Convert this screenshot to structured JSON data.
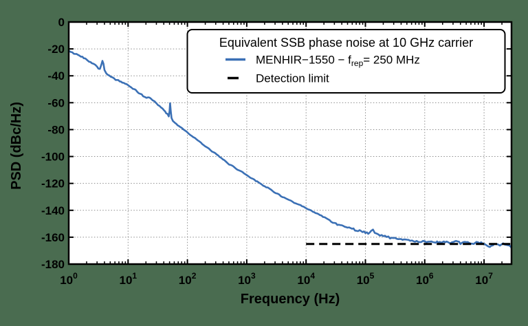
{
  "figure": {
    "background_color": "#4A6C50",
    "plot_background": "#FFFFFF",
    "grid_color": "#8C8C8C",
    "axis_color": "#000000"
  },
  "axes": {
    "x_label": "Frequency (Hz)",
    "y_label": "PSD (dBc/Hz)",
    "x_tick_base": "10",
    "x_tick_exponents": [
      0,
      1,
      2,
      3,
      4,
      5,
      6,
      7
    ],
    "y_tick_labels": [
      "0",
      "-20",
      "-40",
      "-60",
      "-80",
      "-100",
      "-120",
      "-140",
      "-160",
      "-180"
    ]
  },
  "legend": {
    "title": "Equivalent SSB phase noise at 10 GHz carrier",
    "entries": [
      {
        "label_prefix": "MENHIR−1550 − f",
        "label_sub": "rep",
        "label_suffix": "= 250 MHz",
        "color": "#3B70B5",
        "style": "solid"
      },
      {
        "label_prefix": "Detection limit",
        "label_sub": "",
        "label_suffix": "",
        "color": "#000000",
        "style": "dashed"
      }
    ]
  },
  "chart_data": {
    "type": "line",
    "title": "Equivalent SSB phase noise at 10 GHz carrier",
    "xlabel": "Frequency (Hz)",
    "ylabel": "PSD (dBc/Hz)",
    "xscale": "log",
    "xlim": [
      1,
      29000000
    ],
    "ylim": [
      -180,
      0
    ],
    "grid": true,
    "legend_position": "upper right",
    "series": [
      {
        "name": "MENHIR−1550 − f_rep = 250 MHz",
        "color": "#3B70B5",
        "style": "solid",
        "points": [
          [
            1,
            -21.5
          ],
          [
            1.15,
            -23
          ],
          [
            1.35,
            -24
          ],
          [
            1.6,
            -25.5
          ],
          [
            1.9,
            -27
          ],
          [
            2.2,
            -29
          ],
          [
            2.6,
            -31
          ],
          [
            3.0,
            -33
          ],
          [
            3.35,
            -35
          ],
          [
            3.55,
            -31.5
          ],
          [
            3.7,
            -28.5
          ],
          [
            3.85,
            -31.5
          ],
          [
            4.0,
            -35.5
          ],
          [
            4.3,
            -38
          ],
          [
            4.8,
            -40
          ],
          [
            5.5,
            -41.5
          ],
          [
            6.5,
            -43
          ],
          [
            8,
            -45
          ],
          [
            10,
            -47
          ],
          [
            12,
            -49.5
          ],
          [
            15,
            -52.5
          ],
          [
            18,
            -55
          ],
          [
            20.5,
            -56.5
          ],
          [
            23,
            -56
          ],
          [
            26,
            -58
          ],
          [
            30,
            -60.5
          ],
          [
            36,
            -63.5
          ],
          [
            42,
            -66.5
          ],
          [
            46,
            -68.5
          ],
          [
            48.5,
            -70
          ],
          [
            50,
            -66
          ],
          [
            51,
            -60.5
          ],
          [
            52.5,
            -66.5
          ],
          [
            54,
            -71
          ],
          [
            57,
            -73.5
          ],
          [
            62,
            -75
          ],
          [
            72,
            -77.5
          ],
          [
            85,
            -79.5
          ],
          [
            100,
            -82
          ],
          [
            125,
            -85.5
          ],
          [
            160,
            -89
          ],
          [
            200,
            -92.5
          ],
          [
            260,
            -96
          ],
          [
            330,
            -99.5
          ],
          [
            420,
            -103
          ],
          [
            540,
            -106.5
          ],
          [
            700,
            -109.5
          ],
          [
            900,
            -112.5
          ],
          [
            1150,
            -115.5
          ],
          [
            1500,
            -118.5
          ],
          [
            1900,
            -121.5
          ],
          [
            2400,
            -124
          ],
          [
            3100,
            -127
          ],
          [
            4000,
            -130
          ],
          [
            5200,
            -132.5
          ],
          [
            6700,
            -135
          ],
          [
            8600,
            -137
          ],
          [
            10000,
            -138.5
          ],
          [
            13000,
            -141
          ],
          [
            17000,
            -143.5
          ],
          [
            22000,
            -146
          ],
          [
            30000,
            -149.5
          ],
          [
            40000,
            -151.5
          ],
          [
            50000,
            -152.5
          ],
          [
            63000,
            -154
          ],
          [
            80000,
            -155.3
          ],
          [
            100000,
            -156.5
          ],
          [
            118000,
            -156.8
          ],
          [
            134000,
            -154.8
          ],
          [
            155000,
            -157.5
          ],
          [
            200000,
            -159
          ],
          [
            260000,
            -160.3
          ],
          [
            316000,
            -160.8
          ],
          [
            400000,
            -161.5
          ],
          [
            500000,
            -162
          ],
          [
            650000,
            -162.8
          ],
          [
            820000,
            -163.2
          ],
          [
            1000000,
            -163.5
          ],
          [
            1300000,
            -163.2
          ],
          [
            1700000,
            -164
          ],
          [
            2100000,
            -163.4
          ],
          [
            2600000,
            -164.2
          ],
          [
            3200000,
            -163.6
          ],
          [
            4000000,
            -164.3
          ],
          [
            5000000,
            -163.8
          ],
          [
            6300000,
            -164.5
          ],
          [
            7900000,
            -164
          ],
          [
            9500000,
            -164.6
          ],
          [
            11000000,
            -166.3
          ],
          [
            12500000,
            -167.3
          ],
          [
            14000000,
            -165.8
          ],
          [
            16000000,
            -165.2
          ],
          [
            18500000,
            -166
          ],
          [
            21000000,
            -165
          ],
          [
            24000000,
            -166.3
          ],
          [
            26500000,
            -165.2
          ],
          [
            29000000,
            -168
          ]
        ]
      },
      {
        "name": "Detection limit",
        "color": "#000000",
        "style": "dashed",
        "points": [
          [
            10000,
            -165
          ],
          [
            29000000,
            -165
          ]
        ]
      }
    ],
    "noise_profile": [
      [
        1,
        0.9
      ],
      [
        100,
        0.45
      ],
      [
        20000,
        0.5
      ],
      [
        80000,
        1.0
      ],
      [
        29000000,
        1.1
      ]
    ]
  }
}
